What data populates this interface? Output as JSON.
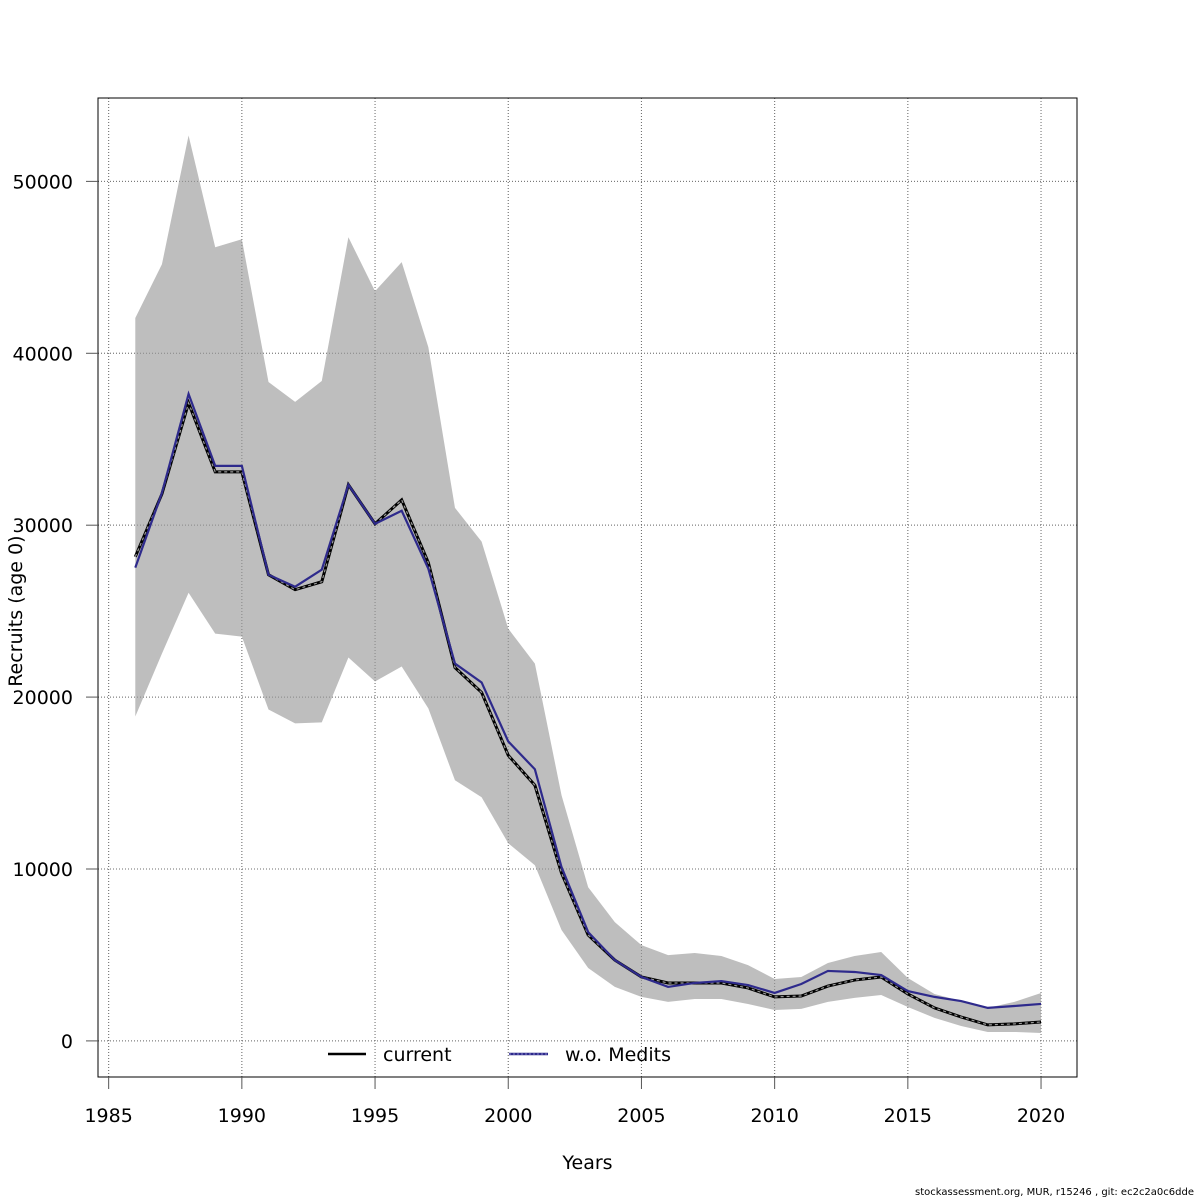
{
  "chart_data": {
    "type": "line",
    "title": "",
    "xlabel": "Years",
    "ylabel": "Recruits (age 0)",
    "xlim": [
      1984.6,
      2021.35
    ],
    "ylim": [
      -2100,
      54850
    ],
    "grid": true,
    "x_ticks": [
      1985,
      1990,
      1995,
      2000,
      2005,
      2010,
      2015,
      2020
    ],
    "y_ticks": [
      0,
      10000,
      20000,
      30000,
      40000,
      50000
    ],
    "x": [
      1986,
      1987,
      1988,
      1989,
      1990,
      1991,
      1992,
      1993,
      1994,
      1995,
      1996,
      1997,
      1998,
      1999,
      2000,
      2001,
      2002,
      2003,
      2004,
      2005,
      2006,
      2007,
      2008,
      2009,
      2010,
      2011,
      2012,
      2013,
      2014,
      2015,
      2016,
      2017,
      2018,
      2019,
      2020
    ],
    "band": {
      "name": "confidence interval",
      "color": "#bebebe",
      "upper": [
        42050,
        45180,
        52670,
        46170,
        46630,
        38330,
        37170,
        38390,
        46750,
        43610,
        45300,
        40360,
        31010,
        29040,
        23980,
        21950,
        14290,
        8940,
        6910,
        5570,
        4990,
        5110,
        4940,
        4410,
        3600,
        3720,
        4530,
        4940,
        5170,
        3660,
        2730,
        2320,
        1920,
        2270,
        2790
      ],
      "lower": [
        18870,
        22530,
        26070,
        23690,
        23520,
        19280,
        18470,
        18530,
        22300,
        20910,
        21780,
        19340,
        15160,
        14170,
        11500,
        10220,
        6450,
        4240,
        3140,
        2560,
        2270,
        2440,
        2440,
        2150,
        1800,
        1860,
        2270,
        2500,
        2670,
        1970,
        1340,
        870,
        520,
        520,
        460
      ]
    },
    "series": [
      {
        "name": "current",
        "color": "#000000",
        "values": [
          28160,
          31820,
          37110,
          33100,
          33100,
          27120,
          26250,
          26710,
          32350,
          30080,
          31470,
          27820,
          21720,
          20270,
          16610,
          14870,
          9760,
          6160,
          4700,
          3720,
          3370,
          3370,
          3370,
          3080,
          2560,
          2610,
          3190,
          3540,
          3720,
          2730,
          1920,
          1390,
          930,
          990,
          1100
        ]
      },
      {
        "name": "w.o. Medits",
        "color": "#2e2a8c",
        "values": [
          27530,
          31880,
          37630,
          33450,
          33450,
          27120,
          26420,
          27410,
          32350,
          30080,
          30840,
          27470,
          21950,
          20850,
          17420,
          15800,
          10110,
          6330,
          4700,
          3720,
          3140,
          3370,
          3480,
          3250,
          2790,
          3310,
          4070,
          4010,
          3830,
          2900,
          2560,
          2320,
          1920,
          2030,
          2150
        ]
      }
    ],
    "legend": {
      "placement": "bottom-center",
      "entries": [
        "current",
        "w.o. Medits"
      ]
    }
  },
  "footer": "stockassessment.org, MUR, r15246 , git: ec2c2a0c6dde"
}
